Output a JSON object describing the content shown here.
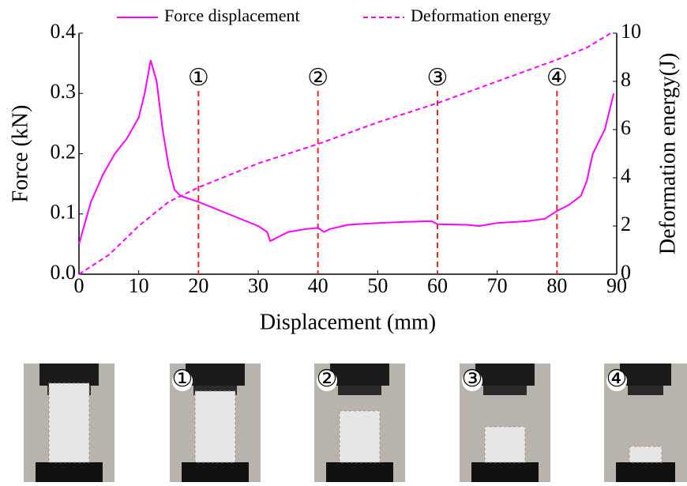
{
  "chart_data": {
    "type": "line",
    "xlabel": "Displacement (mm)",
    "ylabel": "Force (kN)",
    "y2label": "Deformation energy(J)",
    "xlim": [
      0,
      90
    ],
    "xticks": [
      0,
      10,
      20,
      30,
      40,
      50,
      60,
      70,
      80,
      90
    ],
    "ylim": [
      0,
      0.4
    ],
    "yticks": [
      {
        "value": 0,
        "label": "0.0"
      },
      0.1,
      0.2,
      0.3,
      0.4
    ],
    "y2lim": [
      0,
      10
    ],
    "y2ticks": [
      0,
      2,
      4,
      6,
      8,
      10
    ],
    "series": [
      {
        "name": "Force displacement",
        "color": "#ff00ff",
        "dash": false,
        "x": [
          0,
          2,
          4,
          6,
          8,
          10,
          11,
          12,
          13,
          14,
          15,
          16,
          17,
          20,
          25,
          30,
          31.5,
          32,
          33,
          35,
          38,
          40,
          41,
          42,
          45,
          50,
          55,
          59,
          60,
          65,
          67,
          70,
          75,
          78,
          80,
          82,
          84,
          85,
          86,
          88,
          89.5
        ],
        "values": [
          0.05,
          0.12,
          0.165,
          0.2,
          0.225,
          0.26,
          0.3,
          0.355,
          0.32,
          0.24,
          0.18,
          0.14,
          0.13,
          0.12,
          0.1,
          0.08,
          0.07,
          0.055,
          0.06,
          0.07,
          0.075,
          0.077,
          0.07,
          0.075,
          0.082,
          0.085,
          0.087,
          0.088,
          0.083,
          0.082,
          0.08,
          0.085,
          0.088,
          0.092,
          0.105,
          0.115,
          0.13,
          0.155,
          0.2,
          0.24,
          0.3
        ]
      },
      {
        "name": "Deformation energy",
        "color": "#ff00ff",
        "dash": true,
        "axis": "y2",
        "x": [
          0,
          5,
          10,
          15,
          20,
          30,
          40,
          50,
          60,
          70,
          80,
          85,
          89
        ],
        "values": [
          0,
          0.8,
          2,
          3,
          3.6,
          4.6,
          5.4,
          6.3,
          7.1,
          8,
          8.9,
          9.4,
          10
        ]
      }
    ],
    "markers": [
      {
        "x": 20,
        "label": "①"
      },
      {
        "x": 40,
        "label": "②"
      },
      {
        "x": 60,
        "label": "③"
      },
      {
        "x": 80,
        "label": "④"
      }
    ],
    "marker_color": "#e8281e"
  },
  "photos": {
    "labels": [
      "①",
      "②",
      "③",
      "④"
    ]
  }
}
